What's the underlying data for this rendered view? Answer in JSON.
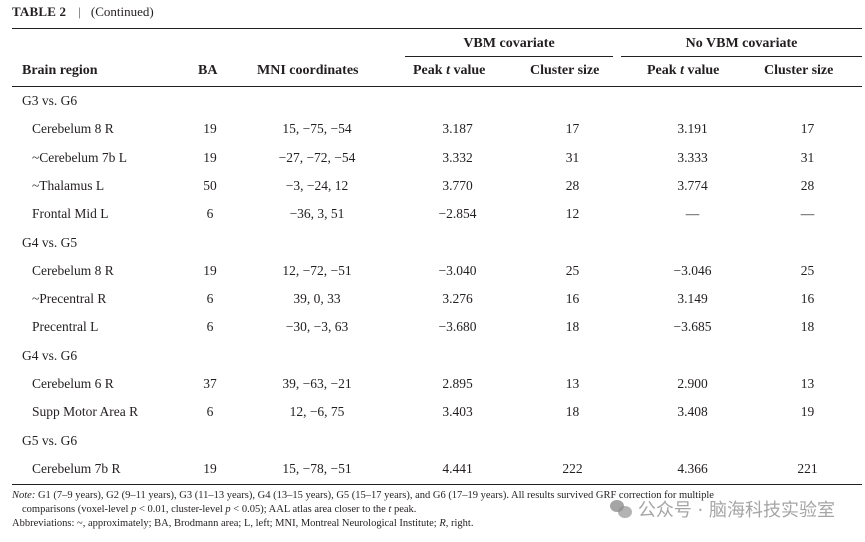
{
  "caption": {
    "label": "TABLE 2",
    "separator": "|",
    "text": "(Continued)"
  },
  "header": {
    "group_vbm": "VBM covariate",
    "group_novbm": "No VBM covariate",
    "col_region": "Brain region",
    "col_ba": "BA",
    "col_mni": "MNI coordinates",
    "col_peak_vbm_pre": "Peak ",
    "col_peak_vbm_t": "t",
    "col_peak_vbm_post": " value",
    "col_cluster_vbm": "Cluster size",
    "col_peak_novbm_pre": "Peak ",
    "col_peak_novbm_t": "t",
    "col_peak_novbm_post": " value",
    "col_cluster_novbm": "Cluster size"
  },
  "groups": [
    {
      "label": "G3 vs. G6",
      "rows": [
        {
          "region": "Cerebelum 8 R",
          "ba": "19",
          "mni": "15, −75, −54",
          "vbm_peak": "3.187",
          "vbm_cluster": "17",
          "novbm_peak": "3.191",
          "novbm_cluster": "17"
        },
        {
          "region": "~Cerebelum 7b L",
          "ba": "19",
          "mni": "−27, −72, −54",
          "vbm_peak": "3.332",
          "vbm_cluster": "31",
          "novbm_peak": "3.333",
          "novbm_cluster": "31"
        },
        {
          "region": "~Thalamus L",
          "ba": "50",
          "mni": "−3, −24, 12",
          "vbm_peak": "3.770",
          "vbm_cluster": "28",
          "novbm_peak": "3.774",
          "novbm_cluster": "28"
        },
        {
          "region": "Frontal Mid L",
          "ba": "6",
          "mni": "−36, 3, 51",
          "vbm_peak": "−2.854",
          "vbm_cluster": "12",
          "novbm_peak": "—",
          "novbm_cluster": "—"
        }
      ]
    },
    {
      "label": "G4 vs. G5",
      "rows": [
        {
          "region": "Cerebelum 8 R",
          "ba": "19",
          "mni": "12, −72, −51",
          "vbm_peak": "−3.040",
          "vbm_cluster": "25",
          "novbm_peak": "−3.046",
          "novbm_cluster": "25"
        },
        {
          "region": "~Precentral R",
          "ba": "6",
          "mni": "39, 0, 33",
          "vbm_peak": "3.276",
          "vbm_cluster": "16",
          "novbm_peak": "3.149",
          "novbm_cluster": "16"
        },
        {
          "region": "Precentral L",
          "ba": "6",
          "mni": "−30, −3, 63",
          "vbm_peak": "−3.680",
          "vbm_cluster": "18",
          "novbm_peak": "−3.685",
          "novbm_cluster": "18"
        }
      ]
    },
    {
      "label": "G4 vs. G6",
      "rows": [
        {
          "region": "Cerebelum 6 R",
          "ba": "37",
          "mni": "39, −63, −21",
          "vbm_peak": "2.895",
          "vbm_cluster": "13",
          "novbm_peak": "2.900",
          "novbm_cluster": "13"
        },
        {
          "region": "Supp Motor Area R",
          "ba": "6",
          "mni": "12, −6, 75",
          "vbm_peak": "3.403",
          "vbm_cluster": "18",
          "novbm_peak": "3.408",
          "novbm_cluster": "19"
        }
      ]
    },
    {
      "label": "G5 vs. G6",
      "rows": [
        {
          "region": "Cerebelum 7b R",
          "ba": "19",
          "mni": "15, −78, −51",
          "vbm_peak": "4.441",
          "vbm_cluster": "222",
          "novbm_peak": "4.366",
          "novbm_cluster": "221"
        }
      ]
    }
  ],
  "notes": {
    "note_label": "Note:",
    "note_line1": " G1 (7–9 years), G2 (9–11 years), G3 (11–13 years), G4 (13–15 years), G5 (15–17 years), and G6 (17–19 years). All results survived GRF correction for multiple",
    "note_line2_a": "comparisons (voxel-level ",
    "note_line2_p1": "p",
    "note_line2_b": " < 0.01, cluster-level ",
    "note_line2_p2": "p",
    "note_line2_c": " < 0.05); AAL atlas area closer to the ",
    "note_line2_t": "t",
    "note_line2_d": " peak.",
    "abbrev_a": "Abbreviations: ~, approximately; BA, Brodmann area; L, left; MNI, Montreal Neurological Institute; ",
    "abbrev_r": "R",
    "abbrev_b": ", right."
  },
  "watermark": {
    "text": "公众号 · 脑海科技实验室",
    "icon": "wechat-icon"
  }
}
